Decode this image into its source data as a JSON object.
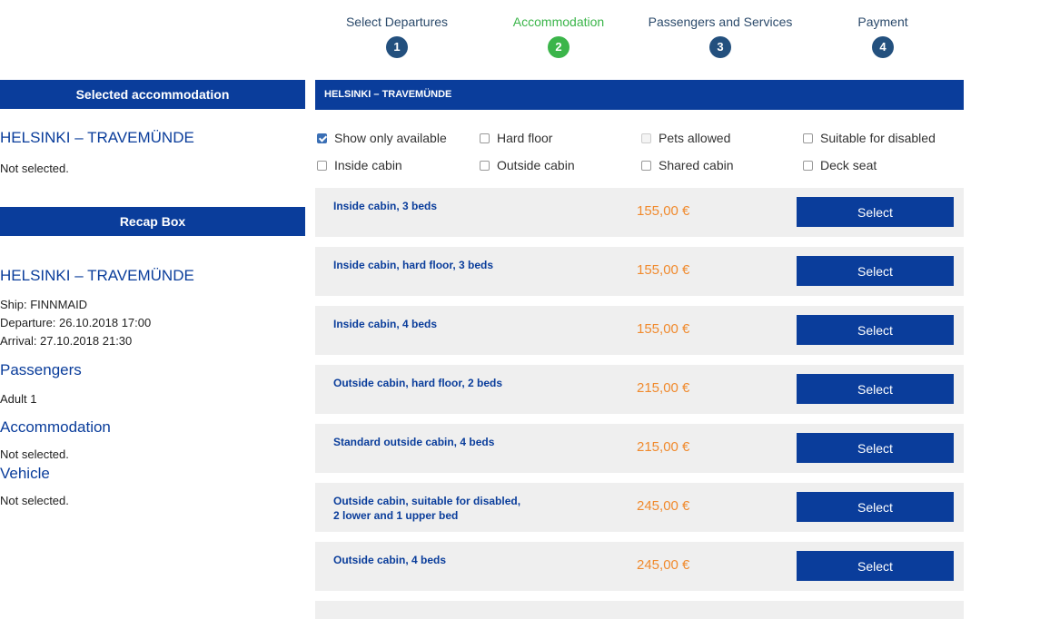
{
  "steps": [
    {
      "label": "Select Departures",
      "num": "1"
    },
    {
      "label": "Accommodation",
      "num": "2"
    },
    {
      "label": "Passengers and Services",
      "num": "3"
    },
    {
      "label": "Payment",
      "num": "4"
    }
  ],
  "sidebar": {
    "selected_title": "Selected accommodation",
    "selected_route": "HELSINKI – TRAVEMÜNDE",
    "selected_status": "Not selected.",
    "recap_title": "Recap Box",
    "recap_route": "HELSINKI – TRAVEMÜNDE",
    "ship": "Ship: FINNMAID",
    "departure": "Departure: 26.10.2018 17:00",
    "arrival": "Arrival: 27.10.2018 21:30",
    "passengers_heading": "Passengers",
    "passengers_value": "Adult 1",
    "accommodation_heading": "Accommodation",
    "accommodation_value": "Not selected.",
    "vehicle_heading": "Vehicle",
    "vehicle_value": "Not selected."
  },
  "main": {
    "route_bar": "HELSINKI – TRAVEMÜNDE",
    "filters": [
      {
        "label": "Show only available",
        "checked": true
      },
      {
        "label": "Hard floor",
        "checked": false
      },
      {
        "label": "Pets allowed",
        "checked": false,
        "disabled": true
      },
      {
        "label": "Suitable for disabled",
        "checked": false
      },
      {
        "label": "Inside cabin",
        "checked": false
      },
      {
        "label": "Outside cabin",
        "checked": false
      },
      {
        "label": "Shared cabin",
        "checked": false
      },
      {
        "label": "Deck seat",
        "checked": false
      }
    ],
    "select_label": "Select",
    "cabins": [
      {
        "name": "Inside cabin, 3 beds",
        "price": "155,00 €"
      },
      {
        "name": "Inside cabin, hard floor, 3 beds",
        "price": "155,00 €"
      },
      {
        "name": "Inside cabin, 4 beds",
        "price": "155,00 €"
      },
      {
        "name": "Outside cabin, hard floor, 2 beds",
        "price": "215,00 €"
      },
      {
        "name": "Standard outside cabin, 4 beds",
        "price": "215,00 €"
      },
      {
        "name": "Outside cabin, suitable for disabled,",
        "name2": "2 lower and 1 upper bed",
        "price": "245,00 €"
      },
      {
        "name": "Outside cabin, 4 beds",
        "price": "245,00 €"
      }
    ]
  },
  "colors": {
    "brand_blue": "#0a3d9b",
    "active_green": "#3bb54a",
    "price_orange": "#f08a2d"
  }
}
